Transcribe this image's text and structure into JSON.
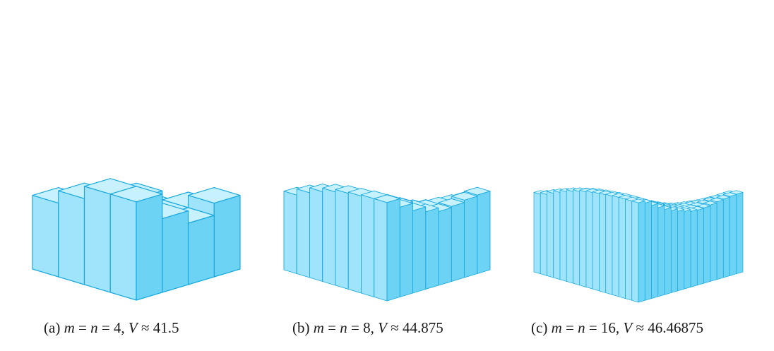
{
  "colors": {
    "top": "#c6f1fd",
    "left": "#9fe4fb",
    "right": "#6cd3f4",
    "edge": "#19a9df"
  },
  "panels": [
    {
      "id": "a",
      "label": "(a)",
      "var_m": "m",
      "var_n": "n",
      "grid_value": "4",
      "var_V": "V",
      "volume": "41.5",
      "grid": 4,
      "heights": [
        [
          8,
          6,
          5,
          6
        ],
        [
          8,
          7,
          5,
          5
        ],
        [
          7,
          6,
          4,
          4
        ],
        [
          6,
          5,
          3,
          3
        ]
      ]
    },
    {
      "id": "b",
      "label": "(b)",
      "var_m": "m",
      "var_n": "n",
      "grid_value": "8",
      "var_V": "V",
      "volume": "44.875",
      "grid": 8,
      "heights": [
        [
          8.0,
          7.3,
          6.7,
          6.3,
          6.0,
          6.1,
          6.3,
          6.4
        ],
        [
          8.0,
          7.4,
          6.8,
          6.3,
          6.0,
          5.9,
          5.8,
          5.7
        ],
        [
          7.9,
          7.3,
          6.7,
          6.2,
          5.7,
          5.4,
          5.1,
          4.9
        ],
        [
          7.8,
          7.2,
          6.6,
          6.1,
          5.5,
          5.0,
          4.6,
          4.3
        ],
        [
          7.6,
          7.0,
          6.4,
          5.8,
          5.2,
          4.6,
          4.1,
          3.7
        ],
        [
          7.3,
          6.7,
          6.1,
          5.5,
          4.8,
          4.2,
          3.6,
          3.1
        ],
        [
          6.9,
          6.3,
          5.7,
          5.1,
          4.4,
          3.8,
          3.1,
          2.5
        ],
        [
          6.4,
          5.8,
          5.2,
          4.6,
          3.9,
          3.2,
          2.5,
          1.9
        ]
      ]
    },
    {
      "id": "c",
      "label": "(c)",
      "var_m": "m",
      "var_n": "n",
      "grid_value": "16",
      "var_V": "V",
      "volume": "46.46875",
      "grid": 16
    }
  ]
}
